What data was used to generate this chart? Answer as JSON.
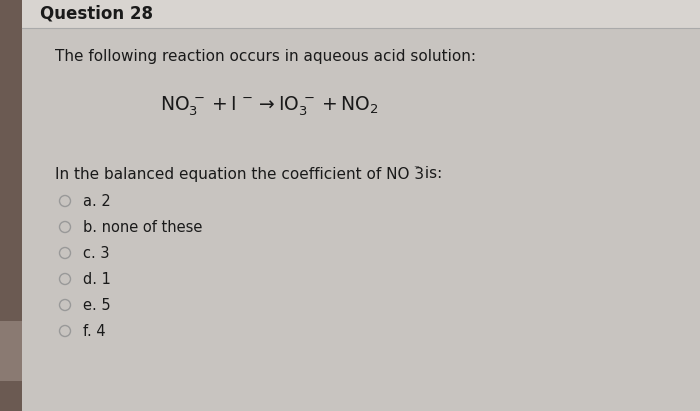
{
  "title": "Question 28",
  "bg_outer": "#c8c4c0",
  "bg_header": "#d8d4d0",
  "bg_content": "#e8e5e1",
  "sidebar_color": "#6b5a52",
  "sidebar_bottom_marker": "#8a7a72",
  "header_line_color": "#aaaaaa",
  "intro_text": "The following reaction occurs in aqueous acid solution:",
  "question_text": "In the balanced equation the coefficient of NO 3",
  "question_text_suffix": " is:",
  "choices": [
    "a. 2",
    "b. none of these",
    "c. 3",
    "d. 1",
    "e. 5",
    "f. 4"
  ],
  "title_fontsize": 12,
  "body_fontsize": 11,
  "equation_fontsize": 13.5,
  "choice_fontsize": 10.5,
  "text_color": "#1a1a1a"
}
